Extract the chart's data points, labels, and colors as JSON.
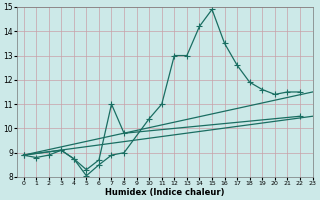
{
  "xlabel": "Humidex (Indice chaleur)",
  "xlim": [
    -0.5,
    23
  ],
  "ylim": [
    8,
    15
  ],
  "xticks": [
    0,
    1,
    2,
    3,
    4,
    5,
    6,
    7,
    8,
    9,
    10,
    11,
    12,
    13,
    14,
    15,
    16,
    17,
    18,
    19,
    20,
    21,
    22,
    23
  ],
  "yticks": [
    8,
    9,
    10,
    11,
    12,
    13,
    14,
    15
  ],
  "background_color": "#cce9e8",
  "grid_color": "#c8a0a8",
  "line_color": "#1a6e62",
  "line1_x": [
    0,
    1,
    2,
    3,
    4,
    5,
    6,
    7,
    8,
    10,
    11,
    12,
    13,
    14,
    15,
    16,
    17,
    18,
    19,
    20,
    21,
    22
  ],
  "line1_y": [
    8.9,
    8.8,
    8.9,
    9.1,
    8.75,
    8.05,
    8.5,
    8.9,
    9.0,
    10.4,
    11.0,
    13.0,
    13.0,
    14.2,
    14.9,
    13.5,
    12.6,
    11.9,
    11.6,
    11.4,
    11.5,
    11.5
  ],
  "line2_x": [
    0,
    3,
    4,
    5,
    6,
    7,
    8,
    22
  ],
  "line2_y": [
    8.9,
    9.1,
    8.75,
    8.3,
    8.7,
    11.0,
    9.8,
    10.5
  ],
  "line3_x": [
    0,
    23
  ],
  "line3_y": [
    8.9,
    11.5
  ],
  "line4_x": [
    0,
    23
  ],
  "line4_y": [
    8.9,
    10.5
  ]
}
